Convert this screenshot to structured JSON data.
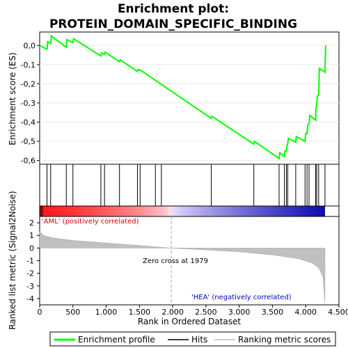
{
  "chart_data": {
    "type": "line",
    "title_line1": "Enrichment plot:",
    "title_line2": "PROTEIN_DOMAIN_SPECIFIC_BINDING",
    "top_panel": {
      "ylabel": "Enrichment score (ES)",
      "ylim": [
        -0.62,
        0.07
      ],
      "yticks": [
        0.0,
        -0.1,
        -0.2,
        -0.3,
        -0.4,
        -0.5,
        -0.6
      ],
      "ytick_labels": [
        "0,0",
        "-0,1",
        "-0,2",
        "-0,3",
        "-0,4",
        "-0,5",
        "-0,6"
      ],
      "series": [
        {
          "name": "Enrichment profile",
          "color": "#00ff00",
          "x": [
            0,
            110,
            120,
            165,
            175,
            400,
            410,
            500,
            510,
            920,
            930,
            975,
            985,
            1200,
            1210,
            1470,
            1480,
            1510,
            1520,
            2580,
            2590,
            3220,
            3230,
            3600,
            3610,
            3680,
            3690,
            3710,
            3720,
            3730,
            3740,
            3850,
            3860,
            3990,
            4000,
            4020,
            4030,
            4050,
            4060,
            4150,
            4155,
            4165,
            4175,
            4195,
            4205,
            4290,
            4300
          ],
          "y": [
            0.0,
            -0.02,
            0.02,
            0.01,
            0.05,
            -0.01,
            0.03,
            0.015,
            0.035,
            -0.055,
            -0.04,
            -0.045,
            -0.035,
            -0.085,
            -0.075,
            -0.135,
            -0.125,
            -0.13,
            -0.13,
            -0.38,
            -0.37,
            -0.515,
            -0.5,
            -0.59,
            -0.56,
            -0.58,
            -0.55,
            -0.55,
            -0.52,
            -0.515,
            -0.485,
            -0.505,
            -0.475,
            -0.5,
            -0.46,
            -0.46,
            -0.415,
            -0.41,
            -0.365,
            -0.39,
            -0.33,
            -0.31,
            -0.265,
            -0.26,
            -0.12,
            -0.14,
            0.0
          ]
        }
      ]
    },
    "hits_panel": {
      "legend_label": "Hits",
      "positions": [
        110,
        165,
        400,
        500,
        920,
        975,
        1200,
        1470,
        1510,
        1740,
        1830,
        2580,
        3220,
        3600,
        3680,
        3710,
        3730,
        3850,
        3990,
        4020,
        4050,
        4150,
        4165,
        4195,
        4290
      ]
    },
    "bottom_panel": {
      "ylabel": "Ranked list metric (Signal2Noise)",
      "xlabel": "Rank in Ordered Dataset",
      "ylim": [
        -4.5,
        2.5
      ],
      "yticks": [
        2,
        1,
        0,
        -1,
        -2,
        -3,
        -4
      ],
      "ytick_labels": [
        "2",
        "1",
        "0",
        "-1",
        "-2",
        "-3",
        "-4"
      ],
      "xlim": [
        0,
        4500
      ],
      "xticks": [
        0,
        500,
        1000,
        1500,
        2000,
        2500,
        3000,
        3500,
        4000,
        4500
      ],
      "xtick_labels": [
        "0",
        "500",
        "1.000",
        "1.500",
        "2.000",
        "2.500",
        "3.000",
        "3.500",
        "4.000",
        "4.500"
      ],
      "metric_points": [
        [
          0,
          1.3
        ],
        [
          60,
          1.0
        ],
        [
          200,
          0.8
        ],
        [
          500,
          0.6
        ],
        [
          1000,
          0.4
        ],
        [
          1500,
          0.2
        ],
        [
          1979,
          0.0
        ],
        [
          2500,
          -0.15
        ],
        [
          3000,
          -0.3
        ],
        [
          3500,
          -0.55
        ],
        [
          3900,
          -0.85
        ],
        [
          4100,
          -1.2
        ],
        [
          4200,
          -1.6
        ],
        [
          4260,
          -2.3
        ],
        [
          4290,
          -4.4
        ]
      ],
      "pos_label": "'AML' (positively correlated)",
      "neg_label": "'HEA' (negatively correlated)",
      "zero_cross_label": "Zero cross at 1979",
      "zero_cross": 1979,
      "pos_color": "#cc0000",
      "neg_color": "#0000cc"
    },
    "legend": [
      {
        "label": "Enrichment profile",
        "color": "#00ff00"
      },
      {
        "label": "Hits",
        "color": "#000000"
      },
      {
        "label": "Ranking metric scores",
        "color": "#c0c0c0"
      }
    ]
  }
}
